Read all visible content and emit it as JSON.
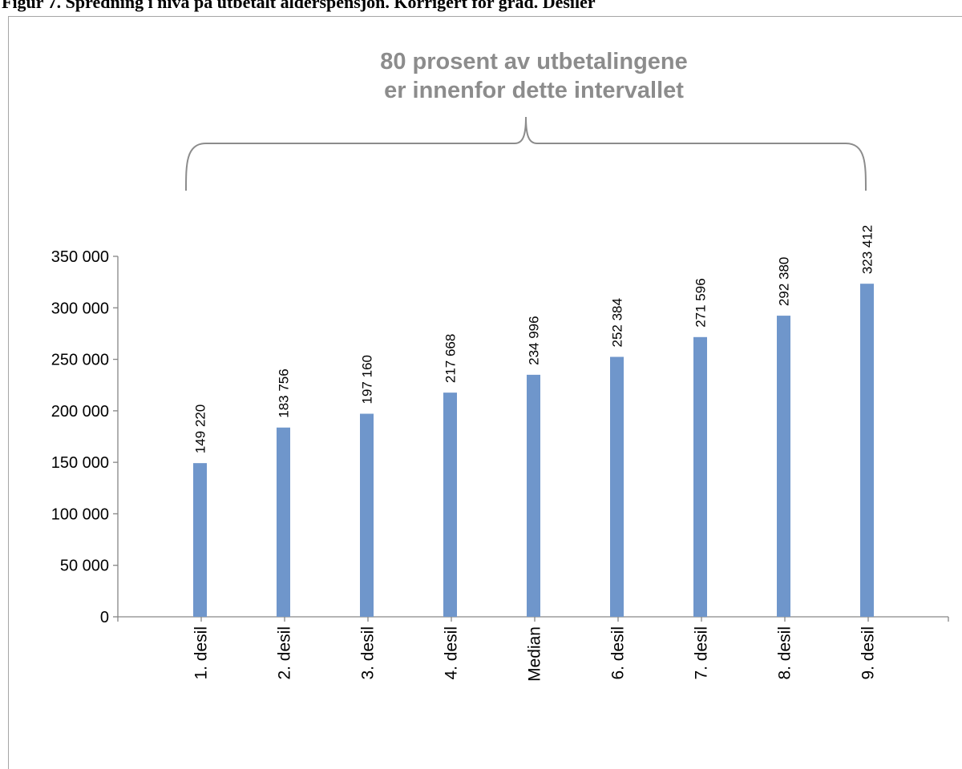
{
  "figure": {
    "title": "Figur 7. Spredning i nivå på utbetalt alderspensjon. Korrigert for grad. Desiler"
  },
  "annotation": {
    "lines": [
      "80 prosent av utbetalingene",
      "er innenfor dette intervallet"
    ],
    "color": "#8c8c8c"
  },
  "colors": {
    "bar": "#6f96cb",
    "axis": "#868686",
    "bracket": "#8c8c8c"
  },
  "chart_data": {
    "type": "bar",
    "categories": [
      "1. desil",
      "2. desil",
      "3. desil",
      "4. desil",
      "Median",
      "6. desil",
      "7. desil",
      "8. desil",
      "9. desil"
    ],
    "values": [
      149220,
      183756,
      197160,
      217668,
      234996,
      252384,
      271596,
      292380,
      323412
    ],
    "data_labels": [
      "149 220",
      "183 756",
      "197 160",
      "217 668",
      "234 996",
      "252 384",
      "271 596",
      "292 380",
      "323 412"
    ],
    "ylim": [
      0,
      350000
    ],
    "y_ticks": [
      0,
      50000,
      100000,
      150000,
      200000,
      250000,
      300000,
      350000
    ],
    "y_tick_labels": [
      "0",
      "50 000",
      "100 000",
      "150 000",
      "200 000",
      "250 000",
      "300 000",
      "350 000"
    ],
    "grid": false,
    "legend": "none"
  }
}
